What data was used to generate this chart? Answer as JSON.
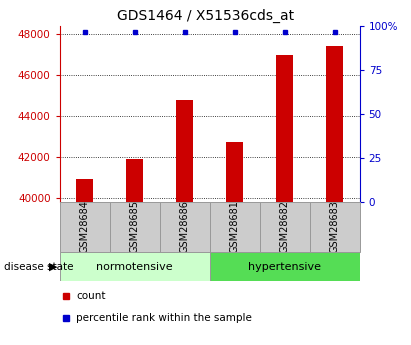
{
  "title": "GDS1464 / X51536cds_at",
  "samples": [
    "GSM28684",
    "GSM28685",
    "GSM28686",
    "GSM28681",
    "GSM28682",
    "GSM28683"
  ],
  "counts": [
    40900,
    41900,
    44800,
    42700,
    47000,
    47400
  ],
  "percentiles": [
    99,
    99,
    99,
    99,
    99,
    99
  ],
  "ylim_left": [
    39800,
    48400
  ],
  "ylim_right": [
    0,
    100
  ],
  "yticks_left": [
    40000,
    42000,
    44000,
    46000,
    48000
  ],
  "yticks_right": [
    0,
    25,
    50,
    75,
    100
  ],
  "bar_color": "#cc0000",
  "dot_color": "#0000cc",
  "grid_color": "#000000",
  "normotensive_color": "#ccffcc",
  "hypertensive_color": "#55dd55",
  "label_bg_color": "#cccccc",
  "normotensive_label": "normotensive",
  "hypertensive_label": "hypertensive",
  "disease_state_label": "disease state",
  "legend_count": "count",
  "legend_percentile": "percentile rank within the sample",
  "bar_width": 0.35,
  "title_fontsize": 10,
  "tick_fontsize": 7.5,
  "label_fontsize": 7,
  "group_fontsize": 8
}
